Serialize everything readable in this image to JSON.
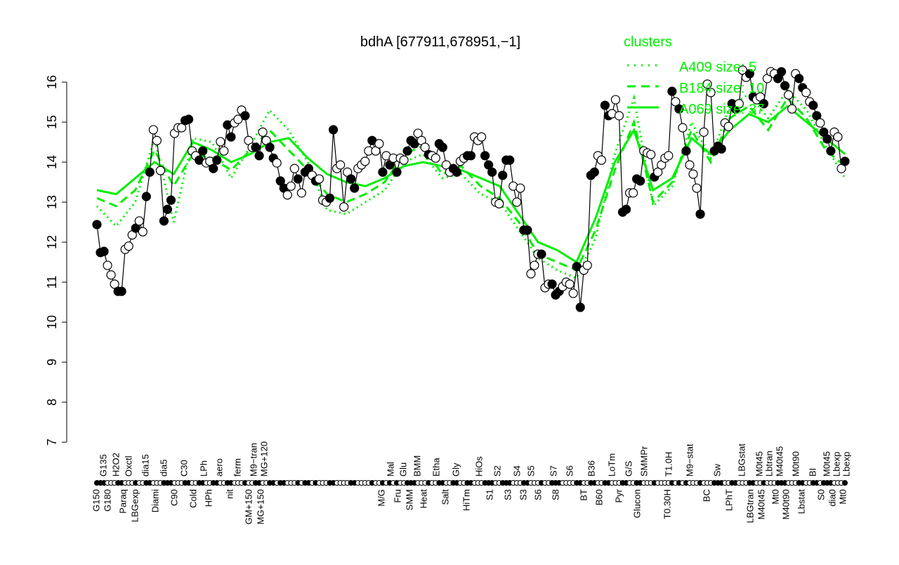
{
  "chart_data": {
    "type": "line",
    "title": "bdhA [677911,678951,−1]",
    "xlabel": "",
    "ylabel": "",
    "ylim": [
      7,
      16
    ],
    "yticks": [
      7,
      8,
      9,
      10,
      11,
      12,
      13,
      14,
      15,
      16
    ],
    "grid": false,
    "legend": {
      "title": "clusters",
      "placement": "top-right",
      "entries": [
        {
          "label": "A409 size: 5",
          "style": "dotted"
        },
        {
          "label": "B184 size: 10",
          "style": "dashed"
        },
        {
          "label": "A069 size: 37",
          "style": "solid"
        }
      ]
    },
    "colors": {
      "cluster": "#00ee00",
      "points": "#000000"
    },
    "xtick_labels_upper": [
      "G135",
      "H2O2",
      "Oxctl",
      "dia15",
      "dia5",
      "C30",
      "LPh",
      "aero",
      "ferm",
      "M9−tran",
      "MG+120",
      "Mal",
      "Glu",
      "BMM",
      "Etha",
      "Gly",
      "HiOs",
      "S2",
      "S4",
      "S5",
      "S7",
      "S6",
      "B36",
      "LoTm",
      "G/S",
      "SMMPr",
      "T1.0H",
      "M9−stat",
      "Sw",
      "LBGstat",
      "M0t45",
      "Lbtran",
      "M40t45",
      "M0t90",
      "BI",
      "M0t45",
      "Lbexp",
      "Lbexp"
    ],
    "xtick_labels_lower": [
      "G150",
      "G180",
      "Paraq",
      "LBGexp",
      "Diami",
      "C90",
      "Cold",
      "HPh",
      "nit",
      "GM+150",
      "MG+150",
      "M/G",
      "Fru",
      "SMM",
      "Heat",
      "Salt",
      "HiTm",
      "S1",
      "S3",
      "S3",
      "S6",
      "S8",
      "BT",
      "B60",
      "Pyr",
      "Glucon",
      "T0.30H",
      "BC",
      "LPhT",
      "LBGtran",
      "M40t45",
      "Mt0",
      "M40t90",
      "Lbstat",
      "S0",
      "dia0",
      "Mt0"
    ],
    "points": {
      "values": [
        12.44,
        11.74,
        11.77,
        11.42,
        11.18,
        10.95,
        10.77,
        10.77,
        11.82,
        11.9,
        12.18,
        12.35,
        12.53,
        12.26,
        13.14,
        13.75,
        14.81,
        14.54,
        13.79,
        12.53,
        12.82,
        13.05,
        14.72,
        14.86,
        14.86,
        15.04,
        15.07,
        14.28,
        14.16,
        14.05,
        14.28,
        13.98,
        14.02,
        13.84,
        14.05,
        14.51,
        14.28,
        14.93,
        14.63,
        14.98,
        15.07,
        15.3,
        15.16,
        14.54,
        14.37,
        14.37,
        14.16,
        14.75,
        14.54,
        14.37,
        14.1,
        13.98,
        13.53,
        13.35,
        13.18,
        13.4,
        13.84,
        13.58,
        13.23,
        13.75,
        13.84,
        13.67,
        13.53,
        13.58,
        13.05,
        13.0,
        13.1,
        14.81,
        13.84,
        13.93,
        12.88,
        13.75,
        13.58,
        13.35,
        13.84,
        13.93,
        14.02,
        14.28,
        14.54,
        14.28,
        14.46,
        13.75,
        14.16,
        13.93,
        14.1,
        13.75,
        14.1,
        14.05,
        14.28,
        14.54,
        14.46,
        14.72,
        14.54,
        14.37,
        14.19,
        14.16,
        14.1,
        14.46,
        14.37,
        13.93,
        13.75,
        13.84,
        13.75,
        14.02,
        14.1,
        14.16,
        14.16,
        14.63,
        14.54,
        14.63,
        14.16,
        13.93,
        13.75,
        13.0,
        12.96,
        13.67,
        14.05,
        14.05,
        13.4,
        13.0,
        13.35,
        12.3,
        12.3,
        11.21,
        11.42,
        11.7,
        11.7,
        10.86,
        10.95,
        10.95,
        10.68,
        10.77,
        10.89,
        11.0,
        10.95,
        10.72,
        11.39,
        10.37,
        11.3,
        11.42,
        13.67,
        13.75,
        14.16,
        14.05,
        15.42,
        15.16,
        15.21,
        15.56,
        15.16,
        12.75,
        12.82,
        13.23,
        13.23,
        13.58,
        13.53,
        14.28,
        14.23,
        14.19,
        13.63,
        13.75,
        13.93,
        14.1,
        14.16,
        15.77,
        15.51,
        15.33,
        14.86,
        14.28,
        13.93,
        13.7,
        13.35,
        12.7,
        14.75,
        15.95,
        15.74,
        14.28,
        14.4,
        14.33,
        14.98,
        14.89,
        15.46,
        15.33,
        15.46,
        16.3,
        16.12,
        16.21,
        15.63,
        15.56,
        15.63,
        15.46,
        16.09,
        16.26,
        16.21,
        16.09,
        16.26,
        15.91,
        15.68,
        15.33,
        16.21,
        16.09,
        15.86,
        15.74,
        15.51,
        15.42,
        15.16,
        14.98,
        14.75,
        14.58,
        14.28,
        14.75,
        14.63,
        13.84,
        14.02
      ],
      "filled": [
        1,
        1,
        1,
        0,
        0,
        0,
        1,
        1,
        0,
        0,
        0,
        1,
        0,
        0,
        1,
        1,
        0,
        0,
        0,
        1,
        1,
        1,
        0,
        0,
        0,
        1,
        1,
        0,
        0,
        1,
        1,
        0,
        0,
        1,
        1,
        0,
        0,
        1,
        1,
        0,
        0,
        0,
        1,
        0,
        0,
        1,
        1,
        0,
        0,
        1,
        1,
        0,
        1,
        1,
        0,
        0,
        0,
        1,
        0,
        1,
        1,
        0,
        1,
        0,
        0,
        0,
        1,
        1,
        0,
        0,
        0,
        0,
        1,
        1,
        0,
        0,
        0,
        0,
        1,
        0,
        0,
        1,
        0,
        1,
        0,
        1,
        0,
        0,
        1,
        1,
        1,
        0,
        0,
        0,
        1,
        0,
        0,
        1,
        1,
        0,
        0,
        1,
        1,
        0,
        0,
        1,
        1,
        0,
        0,
        0,
        1,
        1,
        1,
        0,
        0,
        1,
        1,
        1,
        0,
        0,
        0,
        1,
        1,
        0,
        0,
        0,
        1,
        0,
        0,
        1,
        1,
        1,
        0,
        0,
        0,
        0,
        1,
        1,
        0,
        0,
        1,
        1,
        0,
        0,
        1,
        1,
        0,
        0,
        0,
        1,
        1,
        0,
        0,
        1,
        1,
        0,
        0,
        0,
        1,
        0,
        0,
        0,
        0,
        1,
        0,
        1,
        0,
        1,
        0,
        0,
        0,
        1,
        0,
        0,
        0,
        1,
        1,
        1,
        0,
        0,
        1,
        1,
        0,
        0,
        0,
        1,
        1,
        0,
        0,
        1,
        0,
        0,
        0,
        1,
        1,
        1,
        0,
        0,
        0,
        1,
        1,
        0,
        0,
        1,
        1,
        0,
        1,
        1,
        1,
        0,
        0,
        0,
        1
      ]
    },
    "series": [
      {
        "name": "A409 size: 5",
        "style": "dotted",
        "values": [
          12.9,
          12.4,
          13.0,
          14.6,
          12.5,
          14.6,
          14.5,
          13.6,
          14.4,
          15.3,
          14.8,
          14.0,
          12.8,
          12.7,
          13.0,
          13.3,
          14.0,
          14.2,
          13.6,
          13.7,
          13.2,
          13.0,
          12.3,
          11.6,
          11.3,
          11.1,
          12.1,
          14.2,
          15.6,
          12.9,
          13.4,
          15.0,
          14.1,
          15.4,
          15.7,
          15.1,
          15.8,
          15.3,
          14.4,
          13.6
        ]
      },
      {
        "name": "B184 size: 10",
        "style": "dashed",
        "values": [
          13.1,
          12.9,
          13.3,
          14.3,
          13.4,
          14.2,
          14.1,
          13.8,
          14.3,
          14.8,
          14.3,
          13.8,
          13.2,
          13.0,
          13.2,
          13.5,
          14.2,
          14.4,
          13.7,
          13.9,
          13.4,
          13.1,
          12.5,
          11.7,
          11.5,
          11.3,
          12.3,
          13.8,
          15.0,
          13.0,
          13.5,
          14.8,
          14.0,
          15.1,
          15.4,
          14.8,
          15.6,
          15.1,
          14.3,
          13.9
        ]
      },
      {
        "name": "A069 size: 37",
        "style": "solid",
        "values": [
          13.3,
          13.2,
          13.6,
          14.0,
          13.7,
          14.5,
          14.3,
          14.0,
          14.2,
          14.5,
          14.6,
          14.1,
          13.7,
          13.5,
          13.4,
          13.6,
          13.9,
          14.0,
          13.9,
          13.8,
          13.6,
          13.4,
          12.7,
          12.0,
          11.8,
          11.5,
          12.6,
          14.0,
          14.8,
          13.3,
          13.6,
          14.6,
          14.2,
          14.8,
          15.2,
          15.0,
          15.4,
          15.0,
          14.6,
          14.2
        ]
      }
    ]
  }
}
